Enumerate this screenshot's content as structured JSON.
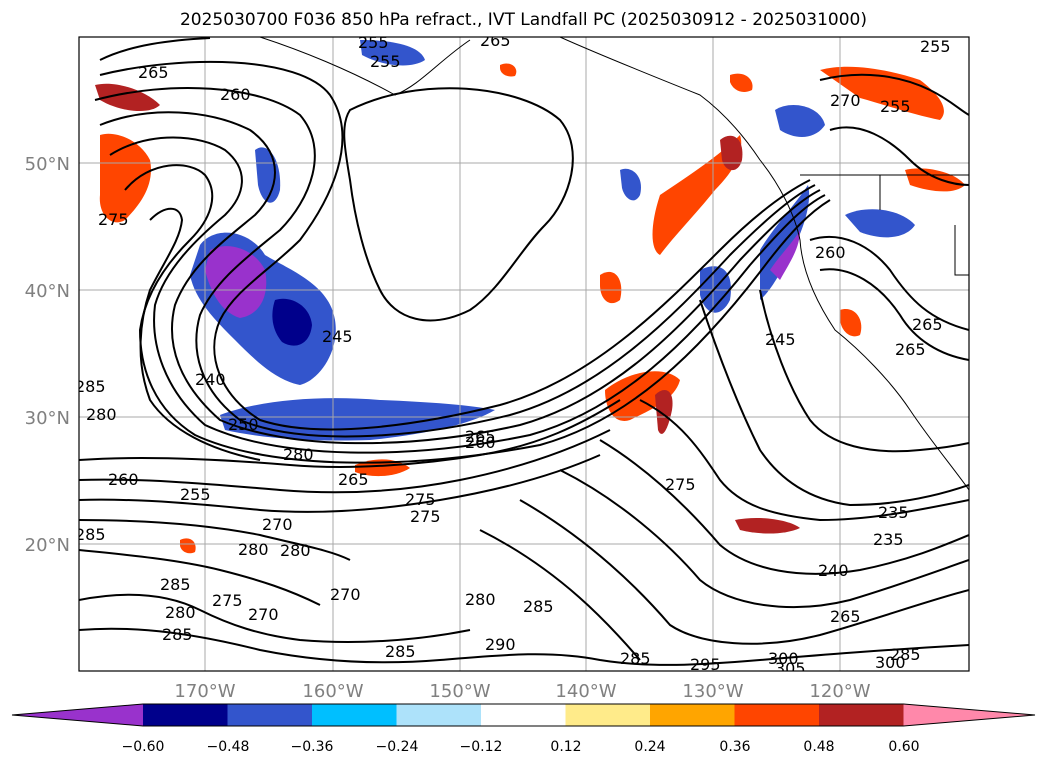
{
  "title": "2025030700 F036 850 hPa refract., IVT Landfall PC (2025030912 - 2025031000)",
  "latitude_labels": [
    "50°N",
    "40°N",
    "30°N",
    "20°N"
  ],
  "longitude_labels": [
    "170°W",
    "160°W",
    "150°W",
    "140°W",
    "130°W",
    "120°W"
  ],
  "contour_labels": [
    "265",
    "260",
    "275",
    "265",
    "285",
    "280",
    "240",
    "250",
    "245",
    "260",
    "280",
    "260",
    "255",
    "270",
    "265",
    "280",
    "280",
    "275",
    "275",
    "270",
    "285",
    "285",
    "285",
    "290",
    "285",
    "285",
    "295",
    "300",
    "305",
    "300",
    "285",
    "275",
    "235",
    "235",
    "240",
    "265",
    "245",
    "260",
    "265",
    "255",
    "270",
    "255",
    "265",
    "255",
    "285",
    "280",
    "280",
    "275",
    "270",
    "265",
    "255"
  ],
  "colorbar": {
    "tick_labels": [
      "−0.60",
      "−0.48",
      "−0.36",
      "−0.24",
      "−0.12",
      "0.12",
      "0.24",
      "0.36",
      "0.48",
      "0.60"
    ],
    "colors": [
      "#9932CC",
      "#00008B",
      "#3355CC",
      "#00BFFF",
      "#ADE2FA",
      "#FFFFFF",
      "#FFEB8A",
      "#FFA500",
      "#FF4500",
      "#B22222",
      "#FF88AA"
    ]
  },
  "colors": {
    "grid": "#a8a8a8",
    "contour": "#000000",
    "axis_label": "#808080"
  }
}
